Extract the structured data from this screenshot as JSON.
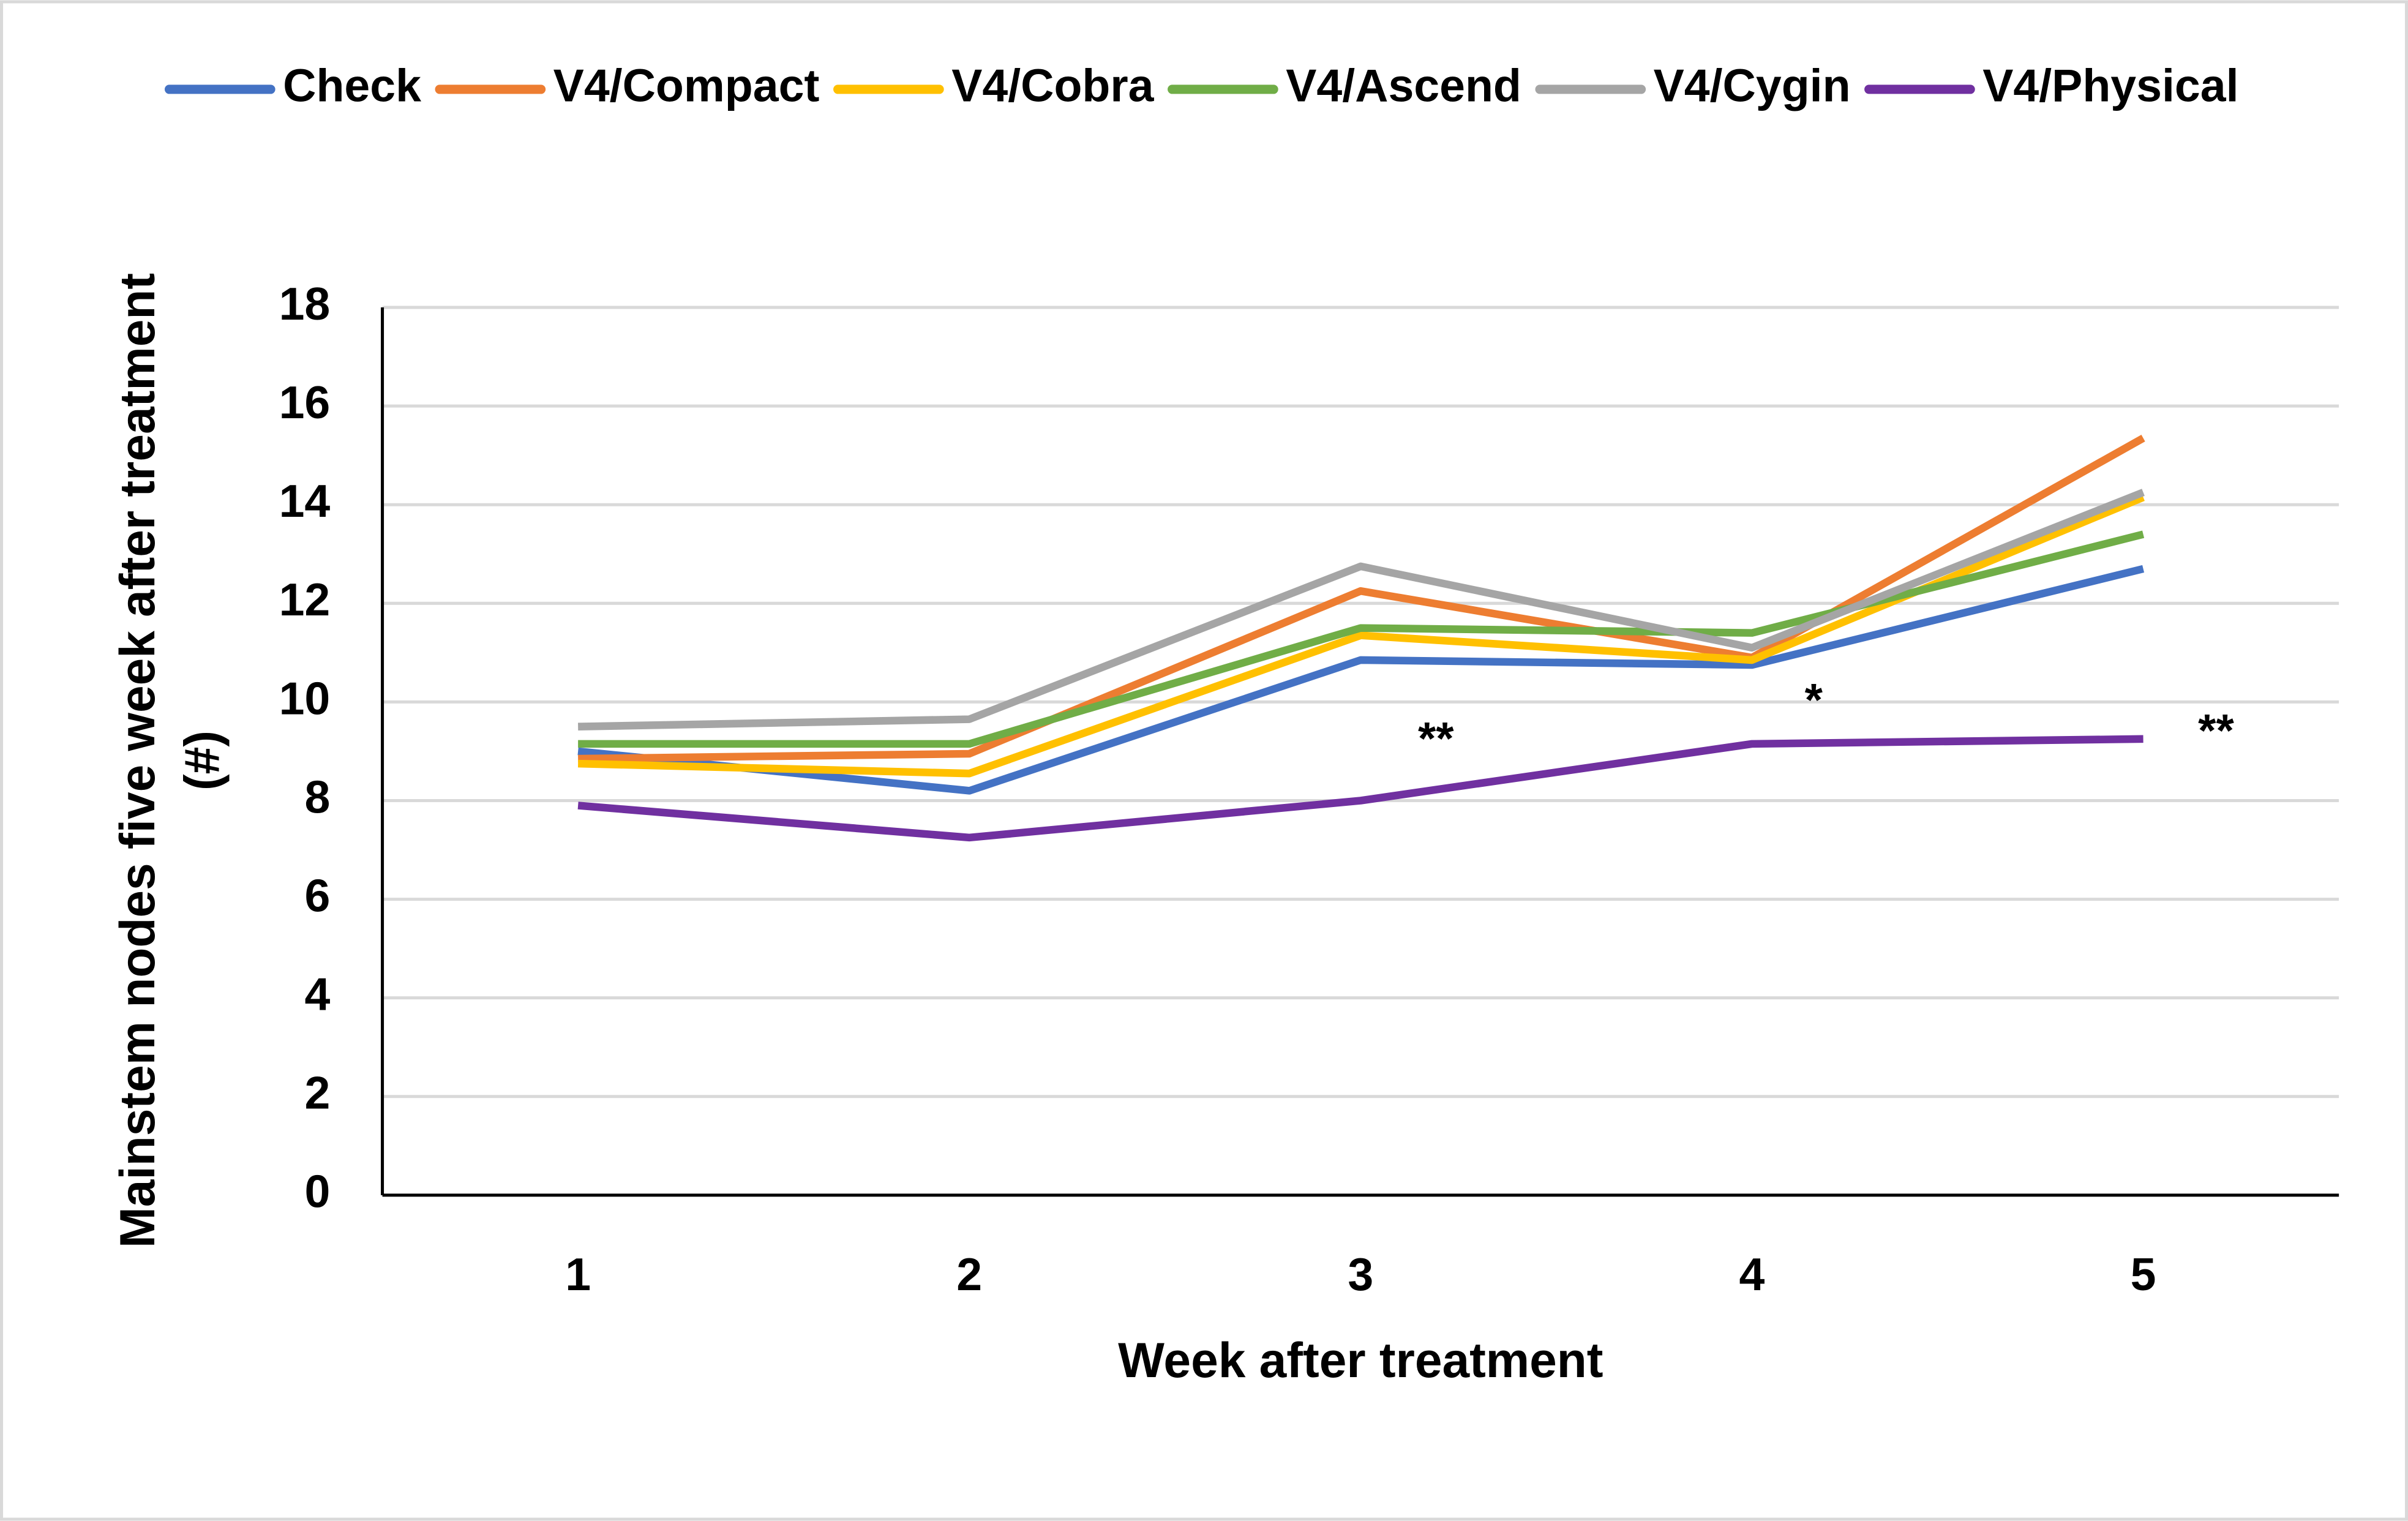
{
  "chart_data": {
    "type": "line",
    "xlabel": "Week after treatment",
    "ylabel": [
      "Mainstem nodes five week after treatment",
      "(#)"
    ],
    "categories": [
      "1",
      "2",
      "3",
      "4",
      "5"
    ],
    "series": [
      {
        "name": "Check",
        "color": "#4472c4",
        "values": [
          9.0,
          8.2,
          10.85,
          10.75,
          12.7
        ]
      },
      {
        "name": "V4/Compact",
        "color": "#ed7d31",
        "values": [
          8.85,
          8.95,
          12.25,
          10.9,
          15.35
        ]
      },
      {
        "name": "V4/Cobra",
        "color": "#ffc000",
        "values": [
          8.75,
          8.55,
          11.35,
          10.85,
          14.15
        ]
      },
      {
        "name": "V4/Ascend",
        "color": "#70ad47",
        "values": [
          9.15,
          9.15,
          11.5,
          11.4,
          13.4
        ]
      },
      {
        "name": "V4/Cygin",
        "color": "#a5a5a5",
        "values": [
          9.5,
          9.65,
          12.75,
          11.1,
          14.25
        ]
      },
      {
        "name": "V4/Physical",
        "color": "#7030a0",
        "values": [
          7.9,
          7.25,
          8.0,
          9.15,
          9.25
        ]
      }
    ],
    "annotations": [
      "**",
      "*",
      "**"
    ],
    "ylim": [
      0,
      18
    ],
    "yticks": [
      0,
      2,
      4,
      6,
      8,
      10,
      12,
      14,
      16,
      18
    ],
    "grid": true,
    "legend": "top"
  }
}
